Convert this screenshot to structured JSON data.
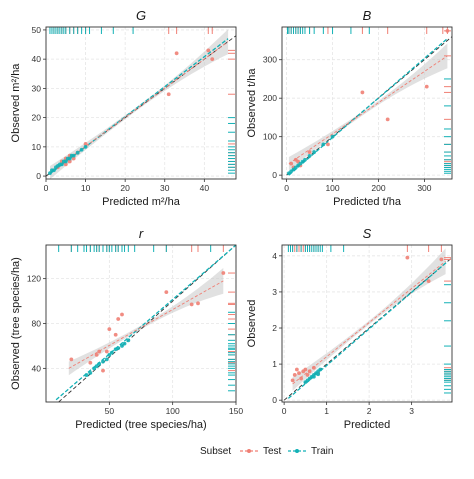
{
  "colors": {
    "test": "#f07f74",
    "train": "#12b1b6",
    "ribbon": "#c8c8c8",
    "grid": "#e6e6e6",
    "identity": "#333333"
  },
  "legend": {
    "title": "Subset",
    "items": [
      {
        "label": "Test",
        "key": "test"
      },
      {
        "label": "Train",
        "key": "train"
      }
    ]
  },
  "chart_data": [
    {
      "type": "scatter",
      "title": "G",
      "xlabel": "Predicted m²/ha",
      "ylabel": "Observed m²/ha",
      "xlim": [
        0,
        48
      ],
      "ylim": [
        -1,
        51
      ],
      "xticks": [
        0,
        10,
        20,
        30,
        40
      ],
      "yticks": [
        0,
        10,
        20,
        30,
        40,
        50
      ],
      "series": [
        {
          "name": "Test",
          "points": [
            [
              3,
              3
            ],
            [
              4,
              5
            ],
            [
              5,
              4
            ],
            [
              5,
              6
            ],
            [
              6,
              7
            ],
            [
              6,
              5
            ],
            [
              7,
              6
            ],
            [
              8,
              8
            ],
            [
              10,
              11
            ],
            [
              31,
              28
            ],
            [
              33,
              42
            ],
            [
              41,
              43
            ],
            [
              42,
              40
            ]
          ]
        },
        {
          "name": "Train",
          "points": [
            [
              1,
              1
            ],
            [
              1.5,
              2
            ],
            [
              2,
              2
            ],
            [
              2.5,
              3
            ],
            [
              3,
              3.5
            ],
            [
              3.5,
              4
            ],
            [
              4,
              4
            ],
            [
              4.5,
              5
            ],
            [
              5,
              5
            ],
            [
              5.5,
              6
            ],
            [
              6,
              6
            ],
            [
              6.5,
              7
            ],
            [
              7,
              7
            ],
            [
              8,
              8
            ],
            [
              9,
              9
            ],
            [
              10,
              10
            ]
          ]
        }
      ],
      "test_fit": [
        [
          1,
          1.2
        ],
        [
          46,
          46
        ]
      ],
      "train_fit": [
        [
          1,
          0.8
        ],
        [
          46,
          47
        ]
      ],
      "identity": [
        [
          0,
          0
        ],
        [
          48,
          48
        ]
      ],
      "rug_x_test": [
        2,
        3,
        4,
        5,
        6,
        7,
        8,
        10,
        31,
        33,
        41,
        42
      ],
      "rug_x_train": [
        1,
        1.5,
        2,
        2.5,
        3,
        3.5,
        4,
        4.5,
        5,
        6,
        7,
        8,
        9,
        10,
        11,
        14,
        17,
        22
      ],
      "rug_y_test": [
        3,
        4,
        5,
        6,
        7,
        8,
        11,
        28,
        40,
        42,
        43
      ],
      "rug_y_train": [
        1,
        2,
        3,
        4,
        5,
        6,
        7,
        8,
        9,
        10,
        12,
        15,
        18,
        20
      ]
    },
    {
      "type": "scatter",
      "title": "B",
      "xlabel": "Predicted t/ha",
      "ylabel": "Observed t/ha",
      "xlim": [
        -10,
        360
      ],
      "ylim": [
        -10,
        385
      ],
      "xticks": [
        0,
        100,
        200,
        300
      ],
      "yticks": [
        0,
        100,
        200,
        300
      ],
      "series": [
        {
          "name": "Test",
          "points": [
            [
              10,
              30
            ],
            [
              15,
              20
            ],
            [
              20,
              40
            ],
            [
              25,
              35
            ],
            [
              30,
              25
            ],
            [
              50,
              60
            ],
            [
              90,
              80
            ],
            [
              165,
              215
            ],
            [
              220,
              145
            ],
            [
              305,
              230
            ],
            [
              350,
              375
            ]
          ]
        },
        {
          "name": "Train",
          "points": [
            [
              5,
              5
            ],
            [
              10,
              10
            ],
            [
              15,
              15
            ],
            [
              20,
              20
            ],
            [
              25,
              25
            ],
            [
              30,
              30
            ],
            [
              35,
              35
            ],
            [
              40,
              40
            ],
            [
              50,
              50
            ],
            [
              60,
              60
            ],
            [
              80,
              80
            ],
            [
              100,
              100
            ]
          ]
        }
      ],
      "test_fit": [
        [
          5,
          30
        ],
        [
          350,
          310
        ]
      ],
      "train_fit": [
        [
          5,
          0
        ],
        [
          350,
          355
        ]
      ],
      "identity": [
        [
          0,
          0
        ],
        [
          360,
          360
        ]
      ],
      "rug_x_test": [
        5,
        10,
        15,
        20,
        25,
        30,
        50,
        90,
        165,
        220,
        305,
        340,
        350
      ],
      "rug_x_train": [
        2,
        5,
        10,
        15,
        20,
        25,
        30,
        35,
        40,
        50,
        60,
        80,
        100,
        140,
        180
      ],
      "rug_y_test": [
        20,
        25,
        30,
        35,
        40,
        60,
        80,
        145,
        215,
        230,
        310,
        375
      ],
      "rug_y_train": [
        5,
        10,
        15,
        20,
        25,
        30,
        40,
        50,
        60,
        80,
        100,
        120,
        180,
        250
      ]
    },
    {
      "type": "scatter",
      "title": "r",
      "xlabel": "Predicted (tree species/ha)",
      "ylabel": "Observed (tree species/ha)",
      "xlim": [
        0,
        150
      ],
      "ylim": [
        10,
        150
      ],
      "xticks": [
        50,
        100,
        150
      ],
      "yticks": [
        40,
        80,
        120
      ],
      "series": [
        {
          "name": "Test",
          "points": [
            [
              20,
              48
            ],
            [
              35,
              45
            ],
            [
              40,
              52
            ],
            [
              42,
              55
            ],
            [
              45,
              38
            ],
            [
              48,
              55
            ],
            [
              50,
              75
            ],
            [
              55,
              70
            ],
            [
              57,
              84
            ],
            [
              60,
              88
            ],
            [
              95,
              108
            ],
            [
              115,
              97
            ],
            [
              120,
              98
            ],
            [
              140,
              125
            ]
          ]
        },
        {
          "name": "Train",
          "points": [
            [
              32,
              34
            ],
            [
              35,
              36
            ],
            [
              38,
              40
            ],
            [
              40,
              42
            ],
            [
              42,
              44
            ],
            [
              45,
              46
            ],
            [
              48,
              48
            ],
            [
              50,
              52
            ],
            [
              52,
              54
            ],
            [
              55,
              57
            ],
            [
              57,
              58
            ],
            [
              60,
              60
            ],
            [
              62,
              62
            ],
            [
              65,
              65
            ]
          ]
        }
      ],
      "test_fit": [
        [
          18,
          40
        ],
        [
          140,
          118
        ]
      ],
      "train_fit": [
        [
          8,
          12
        ],
        [
          150,
          150
        ]
      ],
      "identity": [
        [
          10,
          10
        ],
        [
          150,
          150
        ]
      ],
      "rug_x_test": [
        20,
        35,
        40,
        42,
        45,
        48,
        50,
        55,
        57,
        60,
        95,
        115,
        120,
        140
      ],
      "rug_x_train": [
        10,
        20,
        25,
        30,
        32,
        35,
        38,
        40,
        42,
        45,
        48,
        50,
        52,
        55,
        57,
        60,
        62,
        65,
        70,
        85,
        95,
        130
      ],
      "rug_y_test": [
        38,
        45,
        48,
        52,
        55,
        70,
        75,
        84,
        88,
        97,
        98,
        108,
        125
      ],
      "rug_y_train": [
        20,
        25,
        30,
        34,
        36,
        40,
        42,
        44,
        46,
        48,
        52,
        54,
        57,
        58,
        60,
        62,
        65,
        70,
        80,
        90
      ]
    },
    {
      "type": "scatter",
      "title": "S",
      "xlabel": "Predicted",
      "ylabel": "Observed",
      "xlim": [
        -0.05,
        3.95
      ],
      "ylim": [
        -0.05,
        4.3
      ],
      "xticks": [
        0,
        1,
        2,
        3
      ],
      "yticks": [
        0,
        1,
        2,
        3,
        4
      ],
      "series": [
        {
          "name": "Test",
          "points": [
            [
              0.2,
              0.55
            ],
            [
              0.25,
              0.7
            ],
            [
              0.3,
              0.85
            ],
            [
              0.35,
              0.75
            ],
            [
              0.4,
              0.6
            ],
            [
              0.45,
              0.8
            ],
            [
              0.5,
              0.85
            ],
            [
              0.55,
              0.7
            ],
            [
              0.6,
              0.8
            ],
            [
              0.7,
              0.9
            ],
            [
              0.8,
              0.75
            ],
            [
              2.9,
              3.95
            ],
            [
              3.4,
              3.3
            ],
            [
              3.7,
              3.9
            ]
          ]
        },
        {
          "name": "Train",
          "points": [
            [
              0.5,
              0.5
            ],
            [
              0.55,
              0.55
            ],
            [
              0.6,
              0.6
            ],
            [
              0.65,
              0.65
            ],
            [
              0.7,
              0.7
            ],
            [
              0.75,
              0.75
            ],
            [
              0.8,
              0.8
            ],
            [
              0.85,
              0.85
            ],
            [
              0.7,
              0.65
            ],
            [
              0.8,
              0.72
            ]
          ]
        }
      ],
      "test_fit": [
        [
          0.2,
          0.45
        ],
        [
          3.8,
          3.85
        ]
      ],
      "train_fit": [
        [
          0.1,
          0.05
        ],
        [
          3.85,
          3.85
        ]
      ],
      "identity": [
        [
          0,
          0
        ],
        [
          3.95,
          3.95
        ]
      ],
      "rug_x_test": [
        0.2,
        0.25,
        0.3,
        0.35,
        0.4,
        0.45,
        0.5,
        0.55,
        0.6,
        0.7,
        0.8,
        2.9,
        3.4,
        3.7
      ],
      "rug_x_train": [
        0.1,
        0.15,
        0.2,
        0.3,
        0.4,
        0.5,
        0.55,
        0.6,
        0.65,
        0.7,
        0.75,
        0.8,
        0.85,
        0.9,
        1.1,
        1.4
      ],
      "rug_y_test": [
        0.55,
        0.6,
        0.7,
        0.75,
        0.8,
        0.85,
        0.9,
        3.3,
        3.9,
        3.95
      ],
      "rug_y_train": [
        0.2,
        0.3,
        0.4,
        0.5,
        0.55,
        0.6,
        0.65,
        0.7,
        0.75,
        0.8,
        0.85,
        1.0,
        1.5,
        2.2,
        2.7,
        3.2
      ]
    }
  ]
}
